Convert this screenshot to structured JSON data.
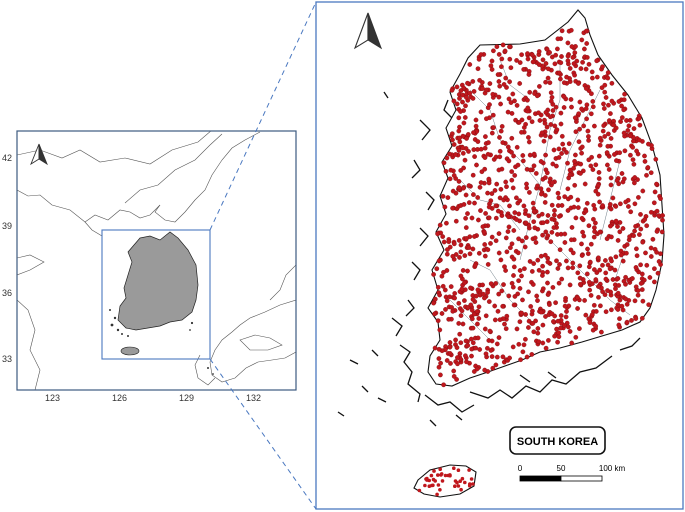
{
  "overview_map": {
    "lat_labels": [
      "42",
      "39",
      "36",
      "33"
    ],
    "lon_labels": [
      "123",
      "126",
      "129",
      "132"
    ],
    "frame_color": "#3d5a80",
    "inset_box_color": "#4a78c0",
    "korea_fill": "#9a9a9a"
  },
  "detail_map": {
    "title": "SOUTH KOREA",
    "scale_bar": {
      "ticks": [
        "0",
        "50",
        "100 km"
      ]
    },
    "point_color": "#c0171d",
    "frame_color": "#4a78c0"
  },
  "north_arrow_icon": "north-arrow-icon"
}
